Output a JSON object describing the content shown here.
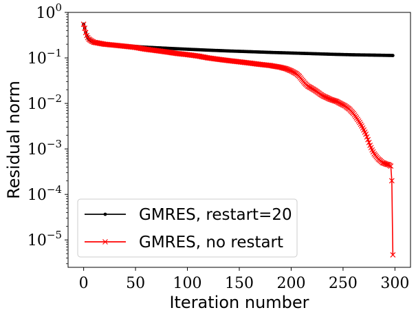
{
  "chart_data": {
    "type": "line",
    "xlabel": "Iteration number",
    "ylabel": "Residual norm",
    "xscale": "linear",
    "yscale": "log",
    "xlim": [
      -15,
      315
    ],
    "ylim": [
      2.5e-06,
      1
    ],
    "xticks": [
      {
        "value": 0,
        "label": "0"
      },
      {
        "value": 50,
        "label": "50"
      },
      {
        "value": 100,
        "label": "100"
      },
      {
        "value": 150,
        "label": "150"
      },
      {
        "value": 200,
        "label": "200"
      },
      {
        "value": 250,
        "label": "250"
      },
      {
        "value": 300,
        "label": "300"
      }
    ],
    "yticks": [
      {
        "exp": 0,
        "base": "10",
        "sup": "0"
      },
      {
        "exp": -1,
        "base": "10",
        "sup": "−1"
      },
      {
        "exp": -2,
        "base": "10",
        "sup": "−2"
      },
      {
        "exp": -3,
        "base": "10",
        "sup": "−3"
      },
      {
        "exp": -4,
        "base": "10",
        "sup": "−4"
      },
      {
        "exp": -5,
        "base": "10",
        "sup": "−5"
      }
    ],
    "grid": false,
    "legend_position": "lower-left",
    "series": [
      {
        "name": "GMRES, restart=20",
        "color": "#000000",
        "marker": "dot",
        "x": [
          0,
          1,
          2,
          3,
          4,
          5,
          7,
          10,
          15,
          20,
          30,
          40,
          50,
          60,
          80,
          100,
          120,
          140,
          160,
          180,
          200,
          220,
          240,
          260,
          280,
          298
        ],
        "y": [
          0.55,
          0.45,
          0.36,
          0.31,
          0.28,
          0.26,
          0.24,
          0.22,
          0.21,
          0.2,
          0.19,
          0.185,
          0.178,
          0.172,
          0.163,
          0.155,
          0.148,
          0.142,
          0.137,
          0.132,
          0.128,
          0.124,
          0.12,
          0.117,
          0.115,
          0.113
        ]
      },
      {
        "name": "GMRES, no restart",
        "color": "#ff0000",
        "marker": "x",
        "x": [
          0,
          1,
          2,
          3,
          4,
          5,
          7,
          10,
          15,
          20,
          30,
          40,
          50,
          60,
          70,
          80,
          90,
          100,
          110,
          120,
          130,
          140,
          150,
          160,
          170,
          180,
          190,
          195,
          200,
          205,
          208,
          210,
          213,
          216,
          219,
          222,
          225,
          228,
          231,
          234,
          237,
          240,
          244,
          248,
          252,
          256,
          260,
          263,
          266,
          268,
          270,
          272,
          274,
          276,
          278,
          280,
          282,
          284,
          286,
          288,
          290,
          292,
          294,
          296,
          297,
          298
        ],
        "y": [
          0.55,
          0.45,
          0.36,
          0.31,
          0.28,
          0.26,
          0.24,
          0.22,
          0.21,
          0.2,
          0.19,
          0.18,
          0.17,
          0.155,
          0.145,
          0.135,
          0.125,
          0.118,
          0.11,
          0.1,
          0.093,
          0.087,
          0.082,
          0.077,
          0.072,
          0.068,
          0.062,
          0.058,
          0.052,
          0.045,
          0.039,
          0.034,
          0.028,
          0.024,
          0.022,
          0.02,
          0.018,
          0.016,
          0.0145,
          0.0135,
          0.0125,
          0.0118,
          0.011,
          0.0098,
          0.0088,
          0.0075,
          0.006,
          0.0048,
          0.0038,
          0.0032,
          0.0026,
          0.0021,
          0.0016,
          0.0012,
          0.00095,
          0.00078,
          0.00068,
          0.0006,
          0.00055,
          0.0005,
          0.00048,
          0.00046,
          0.00045,
          0.00042,
          0.0002,
          4.7e-06
        ]
      }
    ]
  }
}
